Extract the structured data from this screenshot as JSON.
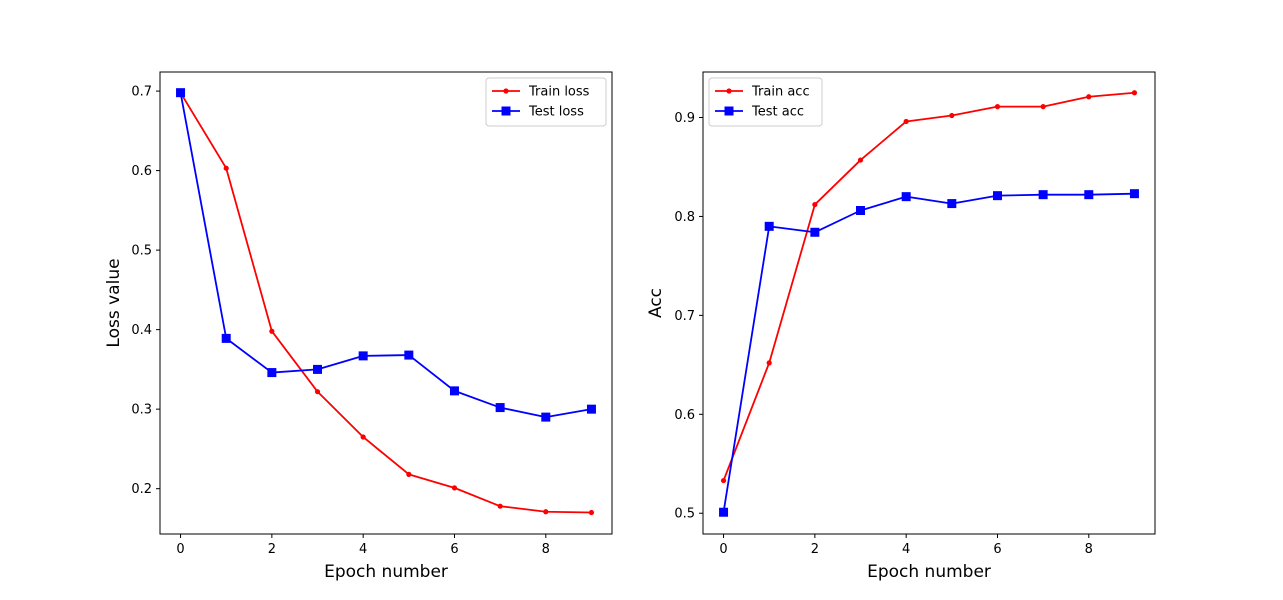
{
  "chart_data": [
    {
      "type": "line",
      "xlabel": "Epoch number",
      "ylabel": "Loss value",
      "xlim": [
        -0.45,
        9.45
      ],
      "ylim": [
        0.143,
        0.724
      ],
      "xticks": [
        0,
        2,
        4,
        6,
        8
      ],
      "yticks": [
        0.2,
        0.3,
        0.4,
        0.5,
        0.6,
        0.7
      ],
      "grid": false,
      "legend_position": "top-right",
      "x": [
        0,
        1,
        2,
        3,
        4,
        5,
        6,
        7,
        8,
        9
      ],
      "series": [
        {
          "name": "Train loss",
          "color": "#ff0000",
          "marker": "dot",
          "values": [
            0.698,
            0.603,
            0.398,
            0.322,
            0.265,
            0.218,
            0.201,
            0.178,
            0.171,
            0.17
          ]
        },
        {
          "name": "Test loss",
          "color": "#0000ff",
          "marker": "square",
          "values": [
            0.698,
            0.389,
            0.346,
            0.35,
            0.367,
            0.368,
            0.323,
            0.302,
            0.29,
            0.3
          ]
        }
      ]
    },
    {
      "type": "line",
      "xlabel": "Epoch number",
      "ylabel": "Acc",
      "xlim": [
        -0.45,
        9.45
      ],
      "ylim": [
        0.479,
        0.946
      ],
      "xticks": [
        0,
        2,
        4,
        6,
        8
      ],
      "yticks": [
        0.5,
        0.6,
        0.7,
        0.8,
        0.9
      ],
      "grid": false,
      "legend_position": "top-left",
      "x": [
        0,
        1,
        2,
        3,
        4,
        5,
        6,
        7,
        8,
        9
      ],
      "series": [
        {
          "name": "Train acc",
          "color": "#ff0000",
          "marker": "dot",
          "values": [
            0.533,
            0.652,
            0.812,
            0.857,
            0.896,
            0.902,
            0.911,
            0.911,
            0.921,
            0.925
          ]
        },
        {
          "name": "Test acc",
          "color": "#0000ff",
          "marker": "square",
          "values": [
            0.501,
            0.79,
            0.784,
            0.806,
            0.82,
            0.813,
            0.821,
            0.822,
            0.822,
            0.823
          ]
        }
      ]
    }
  ]
}
